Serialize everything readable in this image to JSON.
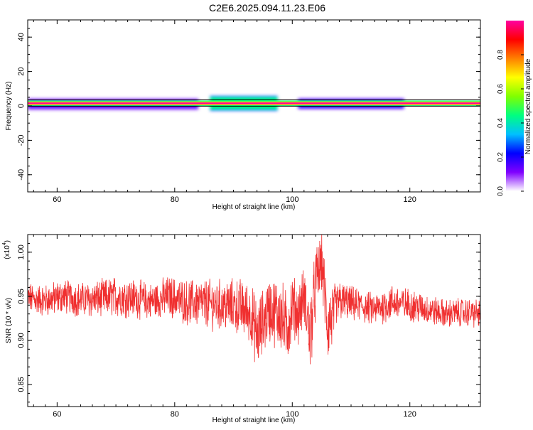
{
  "title": "C2E6.2025.094.11.23.E06",
  "chart_data": [
    {
      "type": "heatmap",
      "xlabel": "Height of straight line (km)",
      "ylabel": "Frequency (Hz)",
      "xlim": [
        55,
        132
      ],
      "ylim": [
        -50,
        50
      ],
      "x_ticks": [
        60,
        80,
        100,
        120
      ],
      "x_tick_labels": [
        "60",
        "80",
        "100",
        "120"
      ],
      "y_ticks": [
        -40,
        -20,
        0,
        20,
        40
      ],
      "y_tick_labels": [
        "-40",
        "-20",
        "0",
        "20",
        "40"
      ],
      "colorbar": {
        "label": "Normalized spectral amplitude",
        "range": [
          0,
          1
        ],
        "ticks": [
          0.0,
          0.2,
          0.4,
          0.6,
          0.8
        ],
        "tick_labels": [
          "0.0",
          "0.2",
          "0.4",
          "0.6",
          "0.8"
        ],
        "colors": [
          "#ffffff",
          "#8000ff",
          "#0000ff",
          "#00c0ff",
          "#00ff80",
          "#80ff00",
          "#ffff00",
          "#ff8000",
          "#ff0000",
          "#ff00a0"
        ]
      },
      "band": {
        "center_freq_hz": 1.5,
        "core_amplitude": 1.0,
        "wide_segments": [
          {
            "x": [
              86,
              97.5
            ],
            "freq_range": [
              -2,
              5
            ],
            "amplitude": 0.45
          },
          {
            "x": [
              101,
              119
            ],
            "freq_range": [
              -1,
              3.5
            ],
            "amplitude": 0.25
          },
          {
            "x": [
              55,
              84
            ],
            "freq_range": [
              -1.5,
              3.5
            ],
            "amplitude": 0.15
          }
        ]
      }
    },
    {
      "type": "line",
      "xlabel": "Height of straight line (km)",
      "ylabel": "SNR (10 * v/v)",
      "y_scale_label": "(x10",
      "y_scale_exponent": "4",
      "xlim": [
        55,
        132
      ],
      "ylim": [
        0.825,
        1.02
      ],
      "x_ticks": [
        60,
        80,
        100,
        120
      ],
      "x_tick_labels": [
        "60",
        "80",
        "100",
        "120"
      ],
      "y_ticks": [
        0.85,
        0.9,
        0.95,
        1.0
      ],
      "y_tick_labels": [
        "0.85",
        "0.90",
        "0.95",
        "1.00"
      ],
      "color": "#f03030",
      "series": [
        {
          "x": [
            55,
            58,
            61,
            64,
            67,
            70,
            73,
            76,
            79,
            82,
            85,
            88,
            91,
            93,
            94,
            96,
            98,
            99,
            100,
            101,
            102,
            103,
            104,
            105,
            106,
            108,
            111,
            114,
            117,
            120,
            123,
            126,
            129,
            132
          ],
          "y": [
            0.948,
            0.945,
            0.95,
            0.946,
            0.947,
            0.95,
            0.948,
            0.944,
            0.95,
            0.943,
            0.942,
            0.94,
            0.938,
            0.93,
            0.905,
            0.935,
            0.93,
            0.91,
            0.94,
            0.93,
            0.95,
            0.905,
            0.965,
            0.99,
            0.915,
            0.945,
            0.94,
            0.935,
            0.943,
            0.94,
            0.935,
            0.93,
            0.932,
            0.93
          ],
          "noise_amplitude": [
            0.015,
            0.016,
            0.017,
            0.017,
            0.018,
            0.02,
            0.019,
            0.018,
            0.02,
            0.022,
            0.024,
            0.025,
            0.028,
            0.03,
            0.035,
            0.032,
            0.036,
            0.04,
            0.032,
            0.028,
            0.03,
            0.04,
            0.035,
            0.03,
            0.04,
            0.02,
            0.016,
            0.016,
            0.018,
            0.016,
            0.015,
            0.014,
            0.014,
            0.014
          ]
        }
      ]
    }
  ]
}
